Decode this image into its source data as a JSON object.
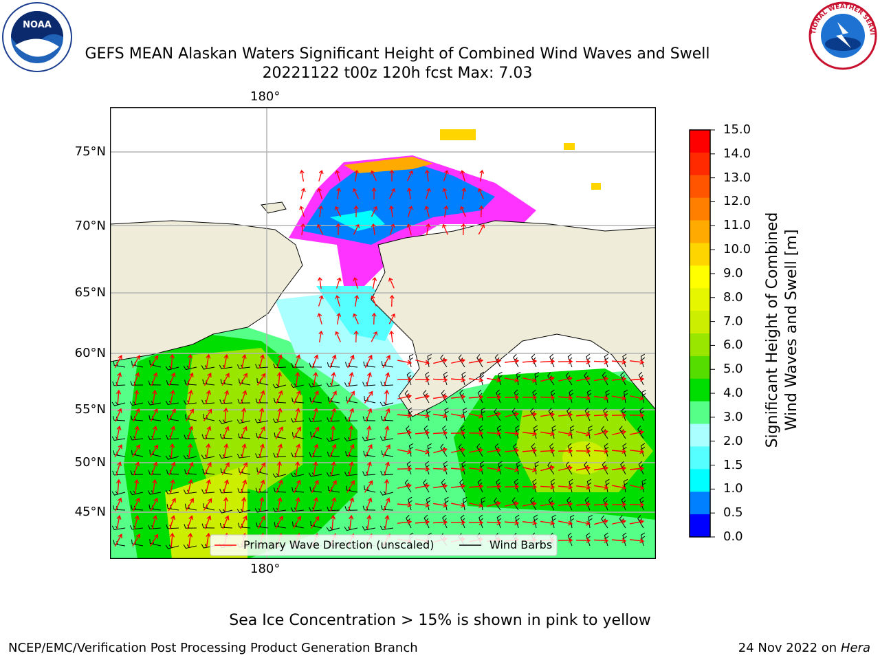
{
  "header": {
    "title_line1": "GEFS MEAN Alaskan Waters Significant Height of Combined Wind Waves and Swell",
    "title_line2": "20221122 t00z 120h fcst   Max: 7.03",
    "left_logo": {
      "icon": "noaa-logo-icon",
      "text": "NOAA"
    },
    "right_logo": {
      "icon": "nws-logo-icon",
      "text": "NATIONAL WEATHER SERVICE"
    }
  },
  "map": {
    "lon_label_top": "180°",
    "lon_label_bottom": "180°",
    "lat_labels": [
      "75°N",
      "70°N",
      "65°N",
      "60°N",
      "55°N",
      "50°N",
      "45°N"
    ],
    "colors": {
      "land": "#efedd9",
      "water_high": "#00ff00",
      "ice": "#ff33ff"
    },
    "legend": {
      "wave_direction": "Primary Wave Direction (unscaled)",
      "wind_barbs": "Wind Barbs",
      "wave_direction_color": "#ff0000",
      "wind_barbs_color": "#000000"
    }
  },
  "colorbar": {
    "label_line1": "Significant Height of Combined",
    "label_line2": "Wind Waves and Swell [m]",
    "ticks": [
      "15.0",
      "14.0",
      "13.0",
      "12.0",
      "11.0",
      "10.0",
      "9.0",
      "8.0",
      "7.0",
      "6.0",
      "5.0",
      "4.0",
      "3.0",
      "2.0",
      "1.5",
      "1.0",
      "0.5",
      "0.0"
    ],
    "colors_top_to_bottom": [
      "#ff0000",
      "#ff2a00",
      "#ff5500",
      "#ff8000",
      "#ffaa00",
      "#ffd500",
      "#ffff00",
      "#e6f500",
      "#ccee00",
      "#99e600",
      "#55dd00",
      "#00dd00",
      "#55ff88",
      "#aaffff",
      "#55ffff",
      "#00ffff",
      "#0080ff",
      "#0000ff"
    ]
  },
  "caption": "Sea Ice Concentration > 15% is shown in pink to yellow",
  "footer": {
    "left": "NCEP/EMC/Verification Post Processing Product Generation Branch",
    "right_date": "24 Nov 2022 on",
    "right_host": "Hera"
  }
}
